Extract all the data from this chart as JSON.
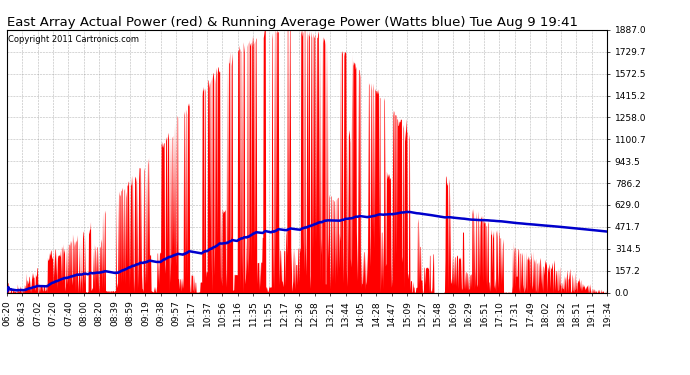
{
  "title": "East Array Actual Power (red) & Running Average Power (Watts blue) Tue Aug 9 19:41",
  "copyright_text": "Copyright 2011 Cartronics.com",
  "background_color": "#ffffff",
  "plot_bg_color": "#ffffff",
  "grid_color": "#888888",
  "actual_color": "#ff0000",
  "avg_color": "#0000cc",
  "ylim": [
    0,
    1887.0
  ],
  "yticks": [
    0.0,
    157.2,
    314.5,
    471.7,
    629.0,
    786.2,
    943.5,
    1100.7,
    1258.0,
    1415.2,
    1572.5,
    1729.7,
    1887.0
  ],
  "xtick_labels": [
    "06:20",
    "06:43",
    "07:02",
    "07:20",
    "07:40",
    "08:00",
    "08:20",
    "08:39",
    "08:59",
    "09:19",
    "09:38",
    "09:57",
    "10:17",
    "10:37",
    "10:56",
    "11:16",
    "11:35",
    "11:55",
    "12:17",
    "12:36",
    "12:58",
    "13:21",
    "13:44",
    "14:05",
    "14:28",
    "14:47",
    "15:09",
    "15:27",
    "15:48",
    "16:09",
    "16:29",
    "16:51",
    "17:10",
    "17:31",
    "17:49",
    "18:02",
    "18:32",
    "18:51",
    "19:11",
    "19:34"
  ],
  "n_points": 1200,
  "title_fontsize": 9.5,
  "tick_fontsize": 6.5,
  "copyright_fontsize": 6.0
}
